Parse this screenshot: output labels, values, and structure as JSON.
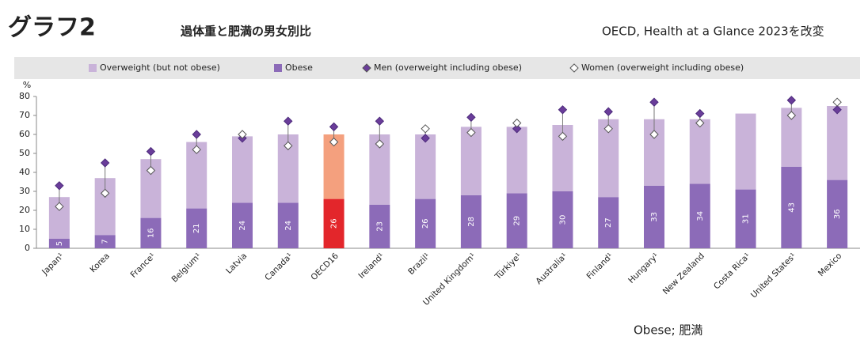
{
  "header": {
    "title": "グラフ2",
    "subtitle": "過体重と肥満の男女別比",
    "source": "OECD, Health at a Glance 2023を改変"
  },
  "footer": {
    "note": "Obese; 肥満"
  },
  "chart_data": {
    "type": "stacked_bar",
    "y_unit": "%",
    "categories": [
      "Japan¹",
      "Korea",
      "France¹",
      "Belgium¹",
      "Latvia",
      "Canada¹",
      "OECD16",
      "Ireland¹",
      "Brazil¹",
      "United Kingdom¹",
      "Türkiye¹",
      "Australia¹",
      "Finland¹",
      "Hungary¹",
      "New Zealand",
      "Costa Rica¹",
      "United States¹",
      "Mexico"
    ],
    "series": [
      {
        "name": "Obese",
        "color": "#8c6bb8",
        "colors": [
          "#8c6bb8",
          "#8c6bb8",
          "#8c6bb8",
          "#8c6bb8",
          "#8c6bb8",
          "#8c6bb8",
          "#e3262b",
          "#8c6bb8",
          "#8c6bb8",
          "#8c6bb8",
          "#8c6bb8",
          "#8c6bb8",
          "#8c6bb8",
          "#8c6bb8",
          "#8c6bb8",
          "#8c6bb8",
          "#8c6bb8",
          "#8c6bb8"
        ],
        "values": [
          5,
          7,
          16,
          21,
          24,
          24,
          26,
          23,
          26,
          28,
          29,
          30,
          27,
          33,
          34,
          31,
          43,
          36
        ]
      },
      {
        "name": "Overweight (but not obese)",
        "color": "#c9b3d9",
        "colors": [
          "#c9b3d9",
          "#c9b3d9",
          "#c9b3d9",
          "#c9b3d9",
          "#c9b3d9",
          "#c9b3d9",
          "#f4a07e",
          "#c9b3d9",
          "#c9b3d9",
          "#c9b3d9",
          "#c9b3d9",
          "#c9b3d9",
          "#c9b3d9",
          "#c9b3d9",
          "#c9b3d9",
          "#c9b3d9",
          "#c9b3d9",
          "#c9b3d9"
        ],
        "values": [
          22,
          30,
          31,
          35,
          35,
          36,
          34,
          37,
          34,
          36,
          35,
          35,
          41,
          35,
          34,
          40,
          31,
          39
        ]
      }
    ],
    "markers": [
      {
        "name": "Men (overweight including obese)",
        "color": "#6a3d9a",
        "values": [
          33,
          45,
          51,
          60,
          58,
          67,
          64,
          67,
          58,
          69,
          63,
          73,
          72,
          77,
          71,
          null,
          78,
          73
        ]
      },
      {
        "name": "Women (overweight including obese)",
        "color": "#ffffff",
        "values": [
          22,
          29,
          41,
          52,
          60,
          54,
          56,
          55,
          63,
          61,
          66,
          59,
          63,
          60,
          66,
          null,
          70,
          77
        ]
      }
    ],
    "ylim": [
      0,
      80
    ],
    "yticks": [
      0,
      10,
      20,
      30,
      40,
      50,
      60,
      70,
      80
    ],
    "grid": false
  }
}
